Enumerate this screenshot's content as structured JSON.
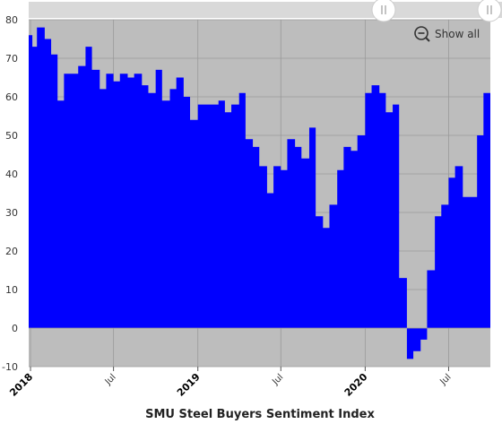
{
  "colors": {
    "plot_bg": "#bdbdbd",
    "series": "#0000ff",
    "grid": "#9a9a9a",
    "scroller_bg": "#d9d9d9"
  },
  "controls": {
    "show_all_label": "Show all",
    "zoom_icon": "zoom-out-icon",
    "scroll_handle_icon": "grip-lines-icon"
  },
  "chart_data": {
    "type": "area",
    "step": true,
    "title": "SMU Steel Buyers Sentiment Index",
    "xlabel": "",
    "ylabel": "",
    "ylim": [
      -10,
      80
    ],
    "yticks": [
      -10,
      0,
      10,
      20,
      30,
      40,
      50,
      60,
      70,
      80
    ],
    "xlim": [
      "2017-12-28",
      "2020-09-30"
    ],
    "xticks": [
      {
        "date": "2018-01-01",
        "label": "2018",
        "major": true
      },
      {
        "date": "2018-07-01",
        "label": "Jul",
        "major": false
      },
      {
        "date": "2019-01-01",
        "label": "2019",
        "major": true
      },
      {
        "date": "2019-07-01",
        "label": "Jul",
        "major": false
      },
      {
        "date": "2020-01-01",
        "label": "2020",
        "major": true
      },
      {
        "date": "2020-07-01",
        "label": "Jul",
        "major": false
      }
    ],
    "grid": true,
    "legend": "none",
    "series": [
      {
        "values": [
          [
            "2017-12-28",
            76
          ],
          [
            "2018-01-05",
            73
          ],
          [
            "2018-01-15",
            78
          ],
          [
            "2018-02-01",
            75
          ],
          [
            "2018-02-15",
            71
          ],
          [
            "2018-03-01",
            59
          ],
          [
            "2018-03-15",
            66
          ],
          [
            "2018-04-15",
            68
          ],
          [
            "2018-05-01",
            73
          ],
          [
            "2018-05-15",
            67
          ],
          [
            "2018-06-01",
            62
          ],
          [
            "2018-06-15",
            66
          ],
          [
            "2018-07-01",
            64
          ],
          [
            "2018-07-15",
            66
          ],
          [
            "2018-08-01",
            65
          ],
          [
            "2018-08-15",
            66
          ],
          [
            "2018-09-01",
            63
          ],
          [
            "2018-09-15",
            61
          ],
          [
            "2018-10-01",
            67
          ],
          [
            "2018-10-15",
            59
          ],
          [
            "2018-11-01",
            62
          ],
          [
            "2018-11-15",
            65
          ],
          [
            "2018-12-01",
            60
          ],
          [
            "2018-12-15",
            54
          ],
          [
            "2019-01-01",
            58
          ],
          [
            "2019-02-01",
            58
          ],
          [
            "2019-02-15",
            59
          ],
          [
            "2019-03-01",
            56
          ],
          [
            "2019-03-15",
            58
          ],
          [
            "2019-04-01",
            61
          ],
          [
            "2019-04-15",
            49
          ],
          [
            "2019-05-01",
            47
          ],
          [
            "2019-05-15",
            42
          ],
          [
            "2019-06-01",
            35
          ],
          [
            "2019-06-15",
            42
          ],
          [
            "2019-07-01",
            41
          ],
          [
            "2019-07-15",
            49
          ],
          [
            "2019-08-01",
            47
          ],
          [
            "2019-08-15",
            44
          ],
          [
            "2019-09-01",
            52
          ],
          [
            "2019-09-15",
            29
          ],
          [
            "2019-10-01",
            26
          ],
          [
            "2019-10-15",
            32
          ],
          [
            "2019-11-01",
            41
          ],
          [
            "2019-11-15",
            47
          ],
          [
            "2019-12-01",
            46
          ],
          [
            "2019-12-15",
            50
          ],
          [
            "2020-01-01",
            61
          ],
          [
            "2020-01-15",
            63
          ],
          [
            "2020-02-01",
            61
          ],
          [
            "2020-02-15",
            56
          ],
          [
            "2020-03-01",
            58
          ],
          [
            "2020-03-15",
            13
          ],
          [
            "2020-04-01",
            -8
          ],
          [
            "2020-04-15",
            -6
          ],
          [
            "2020-05-01",
            -3
          ],
          [
            "2020-05-15",
            15
          ],
          [
            "2020-06-01",
            29
          ],
          [
            "2020-06-15",
            32
          ],
          [
            "2020-07-01",
            39
          ],
          [
            "2020-07-15",
            42
          ],
          [
            "2020-08-01",
            34
          ],
          [
            "2020-08-15",
            34
          ],
          [
            "2020-09-01",
            50
          ],
          [
            "2020-09-15",
            61
          ]
        ]
      }
    ]
  }
}
